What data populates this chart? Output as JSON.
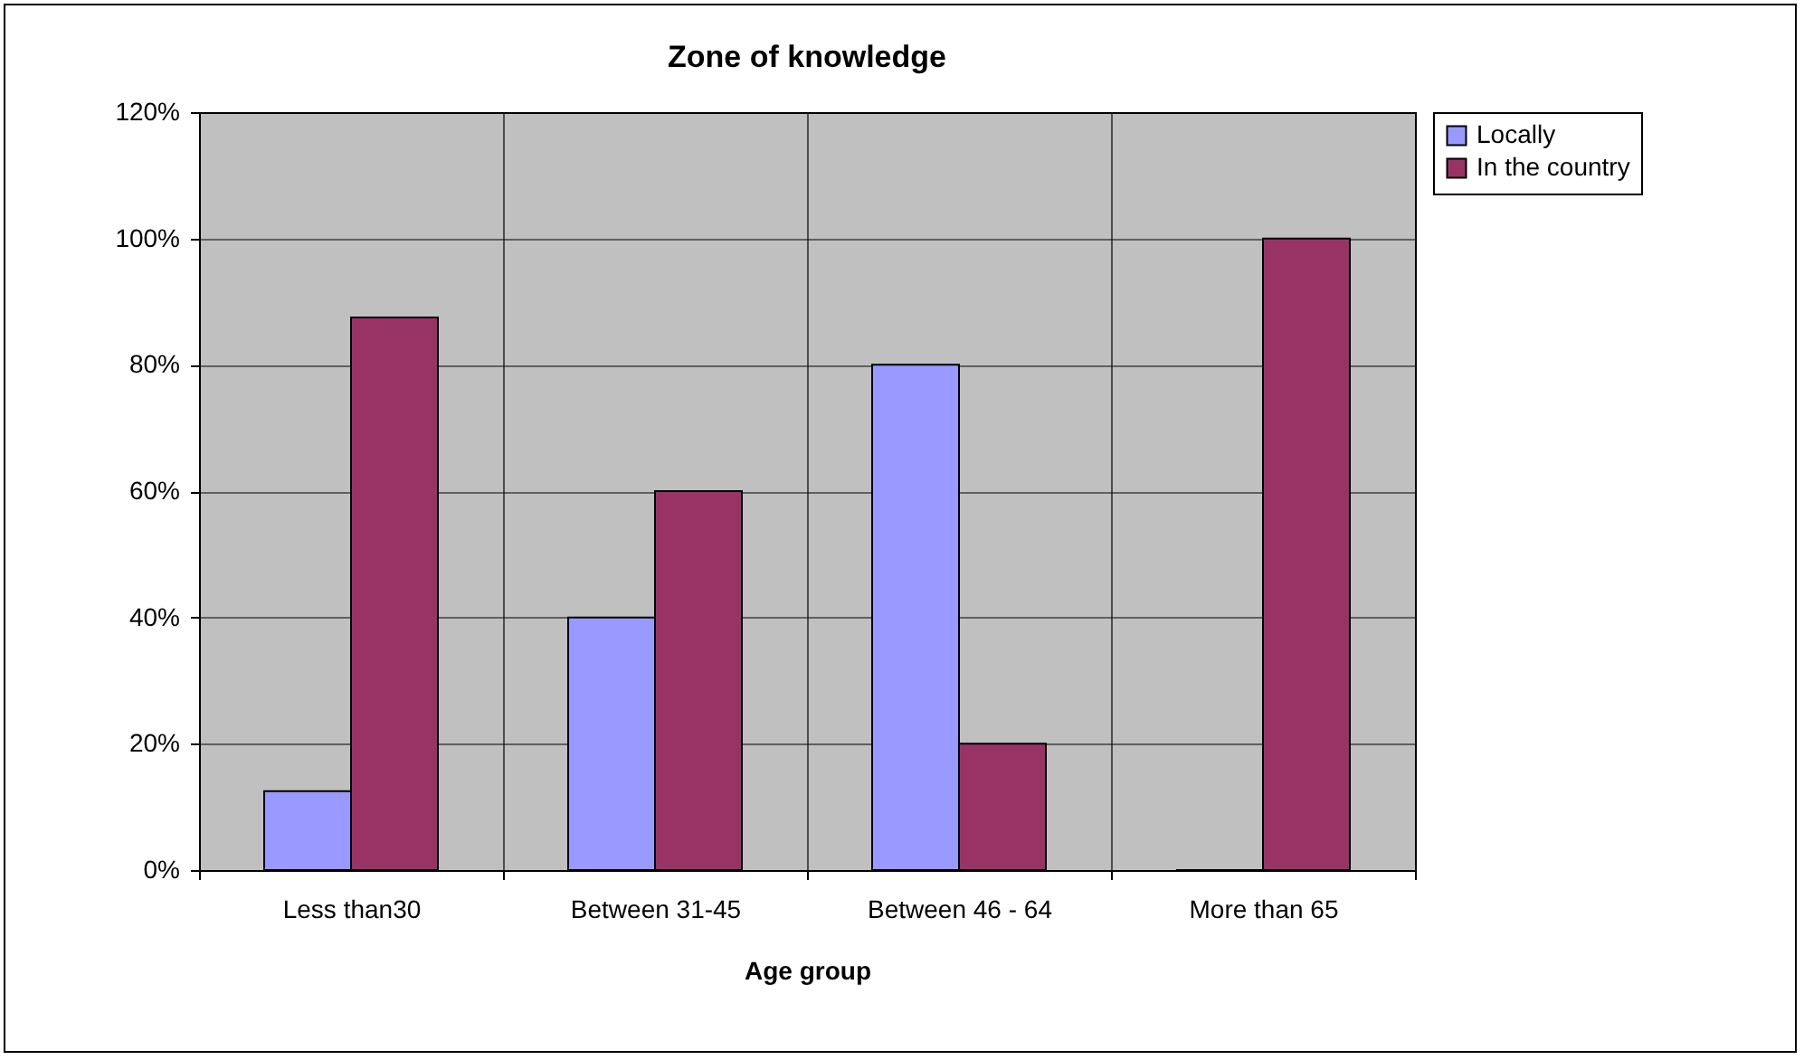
{
  "chart_data": {
    "type": "bar",
    "title": "Zone of knowledge",
    "xlabel": "Age group",
    "categories": [
      "Less than30",
      "Between 31-45",
      "Between 46 - 64",
      "More than 65"
    ],
    "series": [
      {
        "name": "Locally",
        "color": "#9999ff",
        "values": [
          12.5,
          40,
          80,
          0
        ]
      },
      {
        "name": "In the country",
        "color": "#993366",
        "values": [
          87.5,
          60,
          20,
          100
        ]
      }
    ],
    "ylim": [
      0,
      120
    ],
    "yticks": [
      {
        "value": 0,
        "label": "0%"
      },
      {
        "value": 20,
        "label": "20%"
      },
      {
        "value": 40,
        "label": "40%"
      },
      {
        "value": 60,
        "label": "60%"
      },
      {
        "value": 80,
        "label": "80%"
      },
      {
        "value": 100,
        "label": "100%"
      },
      {
        "value": 120,
        "label": "120%"
      }
    ],
    "grid": true,
    "legend": "right"
  }
}
